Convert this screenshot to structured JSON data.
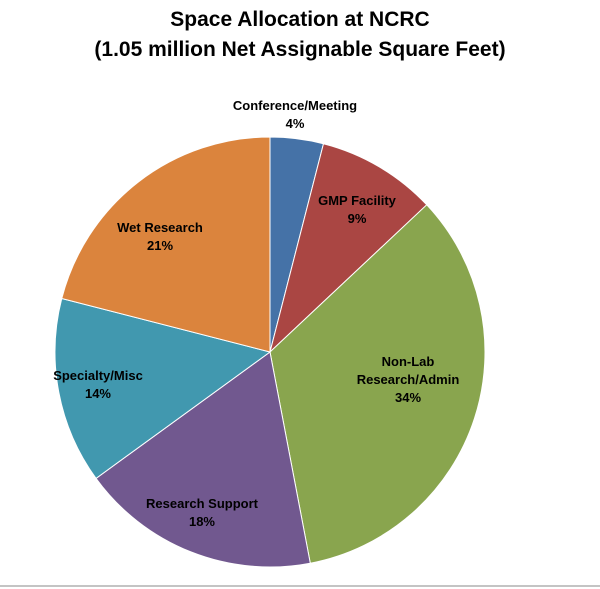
{
  "chart_data": {
    "type": "pie",
    "title": "Space Allocation at NCRC",
    "subtitle": "(1.05 million Net Assignable Square Feet)",
    "categories": [
      "Conference/Meeting",
      "GMP Facility",
      "Non-Lab Research/Admin",
      "Research Support",
      "Specialty/Misc",
      "Wet Research"
    ],
    "values": [
      4,
      9,
      34,
      18,
      14,
      21
    ],
    "value_labels": [
      "4%",
      "9%",
      "34%",
      "18%",
      "14%",
      "21%"
    ],
    "colors": [
      "#4572a7",
      "#aa4643",
      "#89a54e",
      "#71588f",
      "#4198af",
      "#db843d"
    ]
  }
}
